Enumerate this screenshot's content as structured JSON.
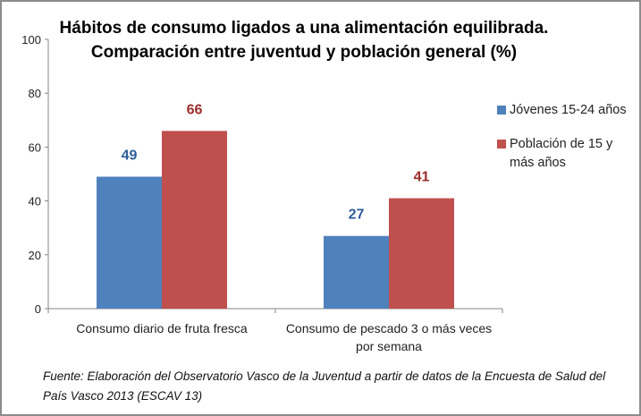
{
  "chart_data": {
    "type": "bar",
    "title": "Hábitos de consumo ligados a una alimentación equilibrada. Comparación entre juventud y población general (%)",
    "title_lines": [
      "Hábitos de consumo ligados a una alimentación equilibrada.",
      "Comparación entre juventud y población general (%)"
    ],
    "xlabel": "",
    "ylabel": "",
    "ylim": [
      0,
      100
    ],
    "yticks": [
      0,
      20,
      40,
      60,
      80,
      100
    ],
    "grid": false,
    "legend_position": "right",
    "categories": [
      "Consumo diario de fruta fresca",
      "Consumo de pescado 3 o más veces por semana"
    ],
    "category_label_lines": [
      [
        "Consumo diario de fruta fresca"
      ],
      [
        "Consumo de pescado 3 o más veces",
        "por semana"
      ]
    ],
    "series": [
      {
        "name": "Jóvenes 15-24 años",
        "values": [
          49,
          27
        ],
        "color": "#4f81bd",
        "label_color": "#2e5c9a"
      },
      {
        "name": "Población de 15 y más años",
        "values": [
          66,
          41
        ],
        "color": "#c0504d",
        "label_color": "#9b2d2a"
      }
    ],
    "legend_lines": [
      [
        "Jóvenes 15-24 años"
      ],
      [
        "Población de 15 y",
        "más años"
      ]
    ],
    "source_note": "Fuente: Elaboración del Observatorio Vasco de la Juventud a partir de datos de la Encuesta de Salud del País Vasco 2013 (ESCAV 13)"
  }
}
